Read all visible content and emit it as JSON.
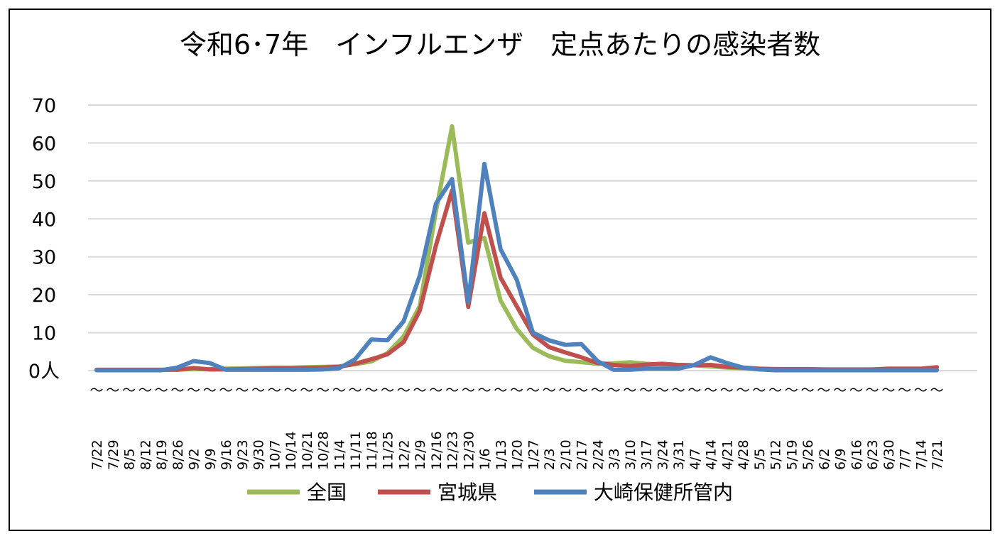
{
  "chart_data": {
    "type": "line",
    "title": "令和6･7年　インフルエンザ　定点あたりの感染者数",
    "xlabel": "",
    "ylabel": "",
    "ylim": [
      0,
      70
    ],
    "yticks": [
      "0人",
      "10",
      "20",
      "30",
      "40",
      "50",
      "60",
      "70"
    ],
    "grid": true,
    "legend_position": "bottom",
    "x_tick_labels": [
      "7/22",
      "7/29",
      "8/5",
      "8/12",
      "8/19",
      "8/26",
      "9/2",
      "9/9",
      "9/16",
      "9/23",
      "9/30",
      "10/7",
      "10/14",
      "10/21",
      "10/28",
      "11/4",
      "11/11",
      "11/18",
      "11/25",
      "12/2",
      "12/9",
      "12/16",
      "12/23",
      "12/30",
      "1/6",
      "1/13",
      "1/20",
      "1/27",
      "2/3",
      "2/10",
      "2/17",
      "2/24",
      "3/3",
      "3/10",
      "3/17",
      "3/24",
      "3/31",
      "4/7",
      "4/14",
      "4/21",
      "4/28",
      "5/5",
      "5/12",
      "5/19",
      "5/26",
      "6/2",
      "6/9",
      "6/16",
      "6/23",
      "6/30",
      "7/7",
      "7/14",
      "7/21"
    ],
    "tick_separator": "～",
    "series": [
      {
        "name": "全国",
        "color": "#9bbb59",
        "values": [
          0.2,
          0.2,
          0.2,
          0.2,
          0.2,
          0.3,
          0.4,
          0.4,
          0.5,
          0.6,
          0.7,
          0.8,
          0.8,
          0.9,
          1.0,
          1.1,
          1.7,
          2.4,
          4.6,
          9.0,
          17.0,
          42.0,
          64.4,
          33.7,
          35.0,
          18.5,
          11.0,
          6.0,
          3.8,
          2.6,
          2.2,
          1.8,
          1.9,
          2.2,
          1.8,
          1.6,
          1.5,
          1.4,
          1.1,
          0.8,
          0.6,
          0.4,
          0.3,
          0.3,
          0.3,
          0.3,
          0.2,
          0.2,
          0.2,
          0.2,
          0.2,
          0.2,
          0.2
        ]
      },
      {
        "name": "宮城県",
        "color": "#c0504d",
        "values": [
          0.2,
          0.2,
          0.2,
          0.2,
          0.2,
          0.2,
          0.7,
          0.3,
          0.3,
          0.4,
          0.5,
          0.6,
          0.6,
          0.7,
          0.8,
          1.0,
          1.8,
          3.0,
          4.3,
          7.5,
          15.8,
          33.0,
          47.5,
          16.8,
          41.5,
          24.5,
          17.0,
          9.5,
          6.2,
          4.8,
          3.5,
          2.0,
          1.5,
          1.2,
          1.6,
          1.8,
          1.5,
          1.4,
          1.5,
          1.0,
          0.8,
          0.5,
          0.4,
          0.4,
          0.4,
          0.3,
          0.3,
          0.3,
          0.3,
          0.5,
          0.5,
          0.5,
          0.9
        ]
      },
      {
        "name": "大崎保健所管内",
        "color": "#4f81bd",
        "values": [
          0.1,
          0.1,
          0.1,
          0.1,
          0.1,
          0.8,
          2.5,
          2.0,
          0.2,
          0.2,
          0.2,
          0.2,
          0.2,
          0.2,
          0.3,
          0.6,
          3.0,
          8.2,
          8.0,
          13.0,
          25.0,
          44.0,
          50.5,
          18.0,
          54.5,
          32.0,
          24.0,
          10.0,
          8.0,
          6.8,
          7.0,
          2.5,
          0.2,
          0.2,
          0.5,
          0.5,
          0.5,
          1.5,
          3.5,
          2.0,
          0.8,
          0.3,
          0.1,
          0.1,
          0.1,
          0.1,
          0.1,
          0.1,
          0.1,
          0.1,
          0.1,
          0.1,
          0.1
        ]
      }
    ]
  }
}
